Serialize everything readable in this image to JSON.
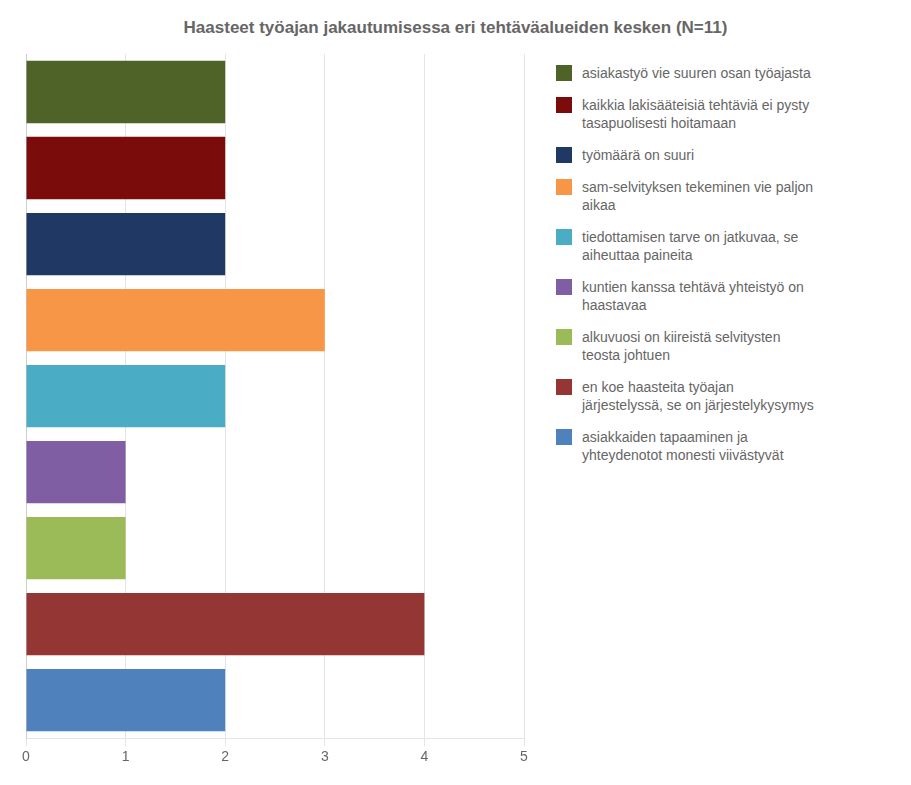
{
  "chart_data": {
    "type": "bar",
    "orientation": "horizontal",
    "title": "Haasteet työajan jakautumisessa eri tehtäväalueiden kesken (N=11)",
    "categories": [
      "asiakastyö vie suuren osan työajasta",
      "kaikkia lakisääteisiä tehtäviä ei pysty\ntasapuolisesti hoitamaan",
      "työmäärä on suuri",
      "sam-selvityksen tekeminen vie paljon\naikaa",
      "tiedottamisen tarve on jatkuvaa, se\naiheuttaa paineita",
      "kuntien kanssa tehtävä yhteistyö on\nhaastavaa",
      "alkuvuosi on kiireistä selvitysten\nteosta johtuen",
      "en koe haasteita työajan\njärjestelyssä, se on järjestelykysymys",
      "asiakkaiden tapaaminen ja\nyhteydenotot monesti viivästyvät"
    ],
    "values": [
      2,
      2,
      2,
      3,
      2,
      1,
      1,
      4,
      2
    ],
    "colors": [
      "#4f6228",
      "#7b0c0c",
      "#1f3864",
      "#f79646",
      "#4bacc6",
      "#7f5ea3",
      "#9bbb59",
      "#943634",
      "#4f81bd"
    ],
    "xlim": [
      0,
      5
    ],
    "xticks": [
      0,
      1,
      2,
      3,
      4,
      5
    ],
    "grid": true,
    "legend": "right",
    "tick_labels": "x"
  }
}
